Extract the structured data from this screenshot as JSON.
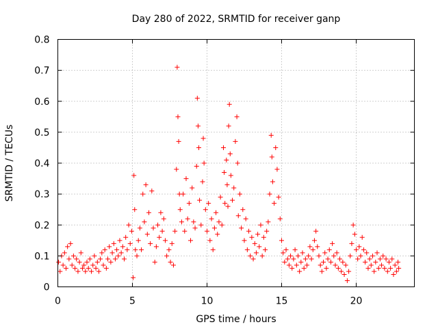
{
  "chart_data": {
    "type": "scatter",
    "title": "Day 280 of 2022, SRMTID for receiver ganp",
    "xlabel": "GPS time / hours",
    "ylabel": "SRMTID / TECUs",
    "xlim": [
      0,
      23.9
    ],
    "ylim": [
      0,
      0.8
    ],
    "xticks": [
      0,
      5,
      10,
      15,
      20
    ],
    "xtick_labels": [
      "0",
      "5",
      "10",
      "15",
      "20"
    ],
    "yticks": [
      0,
      0.1,
      0.2,
      0.3,
      0.4,
      0.5,
      0.6,
      0.7,
      0.8
    ],
    "ytick_labels": [
      "0",
      "0.1",
      "0.2",
      "0.3",
      "0.4",
      "0.5",
      "0.6",
      "0.7",
      "0.8"
    ],
    "grid": true,
    "marker": "+",
    "color": "#ff0000",
    "series": [
      {
        "name": "SRMTID",
        "points": [
          [
            0.05,
            0.08
          ],
          [
            0.15,
            0.05
          ],
          [
            0.25,
            0.1
          ],
          [
            0.35,
            0.07
          ],
          [
            0.45,
            0.11
          ],
          [
            0.55,
            0.06
          ],
          [
            0.65,
            0.13
          ],
          [
            0.75,
            0.09
          ],
          [
            0.85,
            0.14
          ],
          [
            0.95,
            0.07
          ],
          [
            1.05,
            0.1
          ],
          [
            1.15,
            0.06
          ],
          [
            1.25,
            0.09
          ],
          [
            1.35,
            0.05
          ],
          [
            1.45,
            0.08
          ],
          [
            1.55,
            0.11
          ],
          [
            1.65,
            0.06
          ],
          [
            1.75,
            0.07
          ],
          [
            1.85,
            0.05
          ],
          [
            1.95,
            0.08
          ],
          [
            2.05,
            0.06
          ],
          [
            2.15,
            0.09
          ],
          [
            2.25,
            0.05
          ],
          [
            2.35,
            0.07
          ],
          [
            2.45,
            0.1
          ],
          [
            2.55,
            0.06
          ],
          [
            2.65,
            0.08
          ],
          [
            2.75,
            0.05
          ],
          [
            2.85,
            0.09
          ],
          [
            2.95,
            0.11
          ],
          [
            3.05,
            0.07
          ],
          [
            3.15,
            0.12
          ],
          [
            3.25,
            0.06
          ],
          [
            3.35,
            0.09
          ],
          [
            3.45,
            0.13
          ],
          [
            3.55,
            0.08
          ],
          [
            3.65,
            0.11
          ],
          [
            3.75,
            0.14
          ],
          [
            3.85,
            0.09
          ],
          [
            3.95,
            0.12
          ],
          [
            4.05,
            0.1
          ],
          [
            4.15,
            0.15
          ],
          [
            4.25,
            0.11
          ],
          [
            4.35,
            0.13
          ],
          [
            4.45,
            0.09
          ],
          [
            4.55,
            0.16
          ],
          [
            4.65,
            0.12
          ],
          [
            4.75,
            0.2
          ],
          [
            4.85,
            0.14
          ],
          [
            4.95,
            0.18
          ],
          [
            5.05,
            0.03
          ],
          [
            5.1,
            0.36
          ],
          [
            5.15,
            0.25
          ],
          [
            5.2,
            0.12
          ],
          [
            5.3,
            0.1
          ],
          [
            5.4,
            0.15
          ],
          [
            5.5,
            0.19
          ],
          [
            5.6,
            0.12
          ],
          [
            5.7,
            0.3
          ],
          [
            5.8,
            0.21
          ],
          [
            5.9,
            0.33
          ],
          [
            6.0,
            0.17
          ],
          [
            6.1,
            0.24
          ],
          [
            6.2,
            0.14
          ],
          [
            6.3,
            0.31
          ],
          [
            6.4,
            0.19
          ],
          [
            6.5,
            0.08
          ],
          [
            6.6,
            0.13
          ],
          [
            6.7,
            0.2
          ],
          [
            6.8,
            0.16
          ],
          [
            6.9,
            0.24
          ],
          [
            7.0,
            0.18
          ],
          [
            7.1,
            0.22
          ],
          [
            7.2,
            0.15
          ],
          [
            7.3,
            0.1
          ],
          [
            7.45,
            0.12
          ],
          [
            7.55,
            0.08
          ],
          [
            7.65,
            0.14
          ],
          [
            7.75,
            0.07
          ],
          [
            7.85,
            0.18
          ],
          [
            7.95,
            0.38
          ],
          [
            8.0,
            0.71
          ],
          [
            8.05,
            0.55
          ],
          [
            8.1,
            0.47
          ],
          [
            8.15,
            0.3
          ],
          [
            8.2,
            0.25
          ],
          [
            8.3,
            0.21
          ],
          [
            8.4,
            0.3
          ],
          [
            8.5,
            0.18
          ],
          [
            8.6,
            0.35
          ],
          [
            8.7,
            0.22
          ],
          [
            8.8,
            0.27
          ],
          [
            8.9,
            0.15
          ],
          [
            9.0,
            0.32
          ],
          [
            9.1,
            0.21
          ],
          [
            9.2,
            0.19
          ],
          [
            9.3,
            0.39
          ],
          [
            9.35,
            0.61
          ],
          [
            9.4,
            0.52
          ],
          [
            9.45,
            0.45
          ],
          [
            9.5,
            0.28
          ],
          [
            9.6,
            0.2
          ],
          [
            9.7,
            0.34
          ],
          [
            9.75,
            0.48
          ],
          [
            9.8,
            0.4
          ],
          [
            9.9,
            0.25
          ],
          [
            10.0,
            0.18
          ],
          [
            10.1,
            0.27
          ],
          [
            10.2,
            0.15
          ],
          [
            10.3,
            0.22
          ],
          [
            10.4,
            0.12
          ],
          [
            10.5,
            0.19
          ],
          [
            10.6,
            0.24
          ],
          [
            10.7,
            0.17
          ],
          [
            10.8,
            0.21
          ],
          [
            10.9,
            0.29
          ],
          [
            11.0,
            0.2
          ],
          [
            11.1,
            0.45
          ],
          [
            11.15,
            0.37
          ],
          [
            11.2,
            0.27
          ],
          [
            11.3,
            0.41
          ],
          [
            11.35,
            0.33
          ],
          [
            11.4,
            0.26
          ],
          [
            11.45,
            0.52
          ],
          [
            11.5,
            0.59
          ],
          [
            11.55,
            0.43
          ],
          [
            11.6,
            0.36
          ],
          [
            11.7,
            0.28
          ],
          [
            11.8,
            0.32
          ],
          [
            11.9,
            0.47
          ],
          [
            12.0,
            0.55
          ],
          [
            12.05,
            0.4
          ],
          [
            12.1,
            0.23
          ],
          [
            12.2,
            0.3
          ],
          [
            12.3,
            0.19
          ],
          [
            12.4,
            0.25
          ],
          [
            12.5,
            0.15
          ],
          [
            12.6,
            0.22
          ],
          [
            12.7,
            0.12
          ],
          [
            12.8,
            0.18
          ],
          [
            12.9,
            0.1
          ],
          [
            13.0,
            0.16
          ],
          [
            13.1,
            0.09
          ],
          [
            13.2,
            0.14
          ],
          [
            13.3,
            0.11
          ],
          [
            13.4,
            0.17
          ],
          [
            13.5,
            0.13
          ],
          [
            13.6,
            0.2
          ],
          [
            13.7,
            0.1
          ],
          [
            13.8,
            0.16
          ],
          [
            13.9,
            0.12
          ],
          [
            14.0,
            0.18
          ],
          [
            14.1,
            0.21
          ],
          [
            14.2,
            0.3
          ],
          [
            14.3,
            0.49
          ],
          [
            14.35,
            0.42
          ],
          [
            14.4,
            0.34
          ],
          [
            14.5,
            0.27
          ],
          [
            14.6,
            0.45
          ],
          [
            14.7,
            0.38
          ],
          [
            14.8,
            0.29
          ],
          [
            14.9,
            0.22
          ],
          [
            15.0,
            0.15
          ],
          [
            15.1,
            0.11
          ],
          [
            15.2,
            0.08
          ],
          [
            15.3,
            0.12
          ],
          [
            15.4,
            0.09
          ],
          [
            15.5,
            0.07
          ],
          [
            15.6,
            0.1
          ],
          [
            15.7,
            0.06
          ],
          [
            15.8,
            0.09
          ],
          [
            15.9,
            0.12
          ],
          [
            16.0,
            0.07
          ],
          [
            16.1,
            0.1
          ],
          [
            16.2,
            0.05
          ],
          [
            16.3,
            0.08
          ],
          [
            16.4,
            0.11
          ],
          [
            16.5,
            0.06
          ],
          [
            16.6,
            0.09
          ],
          [
            16.7,
            0.07
          ],
          [
            16.8,
            0.1
          ],
          [
            16.9,
            0.13
          ],
          [
            17.0,
            0.09
          ],
          [
            17.1,
            0.12
          ],
          [
            17.2,
            0.15
          ],
          [
            17.3,
            0.18
          ],
          [
            17.4,
            0.13
          ],
          [
            17.5,
            0.1
          ],
          [
            17.6,
            0.07
          ],
          [
            17.7,
            0.05
          ],
          [
            17.8,
            0.08
          ],
          [
            17.9,
            0.11
          ],
          [
            18.0,
            0.06
          ],
          [
            18.1,
            0.09
          ],
          [
            18.2,
            0.12
          ],
          [
            18.3,
            0.08
          ],
          [
            18.4,
            0.14
          ],
          [
            18.5,
            0.1
          ],
          [
            18.6,
            0.07
          ],
          [
            18.7,
            0.11
          ],
          [
            18.8,
            0.06
          ],
          [
            18.9,
            0.09
          ],
          [
            19.0,
            0.05
          ],
          [
            19.1,
            0.08
          ],
          [
            19.2,
            0.04
          ],
          [
            19.3,
            0.07
          ],
          [
            19.4,
            0.02
          ],
          [
            19.5,
            0.05
          ],
          [
            19.6,
            0.1
          ],
          [
            19.7,
            0.14
          ],
          [
            19.8,
            0.2
          ],
          [
            19.9,
            0.17
          ],
          [
            20.0,
            0.12
          ],
          [
            20.1,
            0.09
          ],
          [
            20.2,
            0.13
          ],
          [
            20.3,
            0.1
          ],
          [
            20.4,
            0.16
          ],
          [
            20.5,
            0.12
          ],
          [
            20.6,
            0.08
          ],
          [
            20.7,
            0.11
          ],
          [
            20.8,
            0.06
          ],
          [
            20.9,
            0.09
          ],
          [
            21.0,
            0.07
          ],
          [
            21.1,
            0.1
          ],
          [
            21.2,
            0.05
          ],
          [
            21.3,
            0.08
          ],
          [
            21.4,
            0.11
          ],
          [
            21.5,
            0.06
          ],
          [
            21.6,
            0.09
          ],
          [
            21.7,
            0.07
          ],
          [
            21.8,
            0.1
          ],
          [
            21.9,
            0.06
          ],
          [
            22.0,
            0.09
          ],
          [
            22.1,
            0.05
          ],
          [
            22.2,
            0.08
          ],
          [
            22.3,
            0.06
          ],
          [
            22.4,
            0.09
          ],
          [
            22.5,
            0.04
          ],
          [
            22.6,
            0.07
          ],
          [
            22.7,
            0.05
          ],
          [
            22.8,
            0.08
          ],
          [
            22.85,
            0.06
          ]
        ]
      }
    ]
  }
}
